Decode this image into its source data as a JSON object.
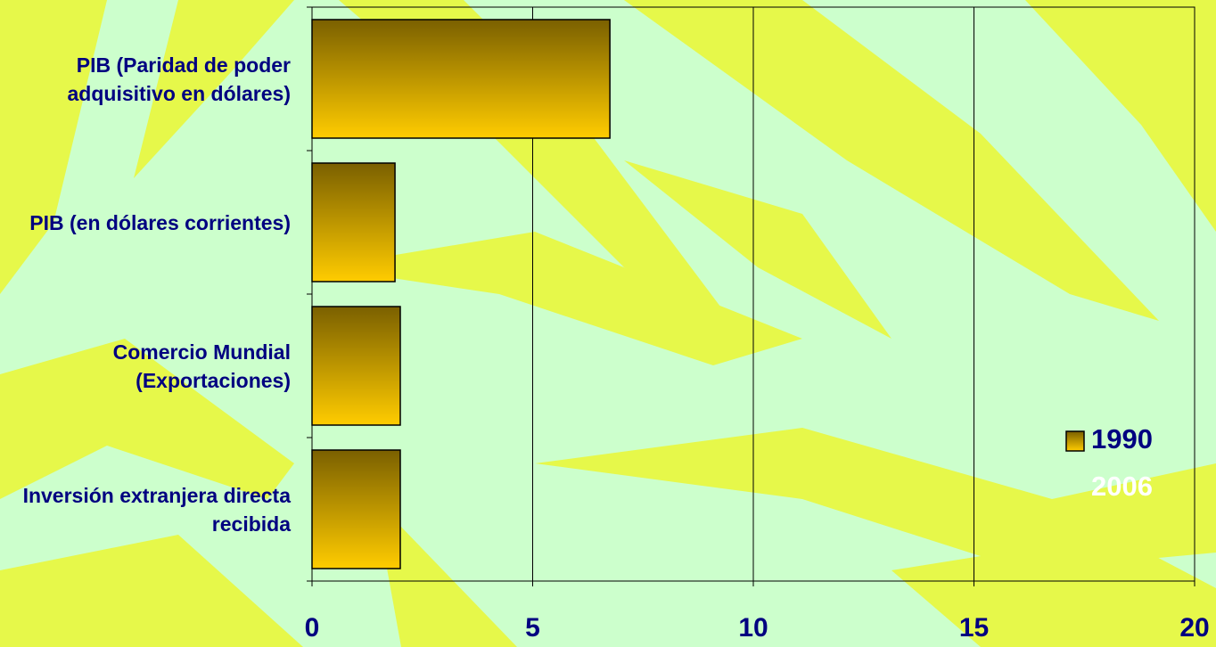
{
  "chart_data": {
    "type": "hbar",
    "categories": [
      "PIB (Paridad de poder adquisitivo en dólares)",
      "PIB (en dólares corrientes)",
      "Comercio Mundial (Exportaciones)",
      "Inversión extranjera directa recibida"
    ],
    "series": [
      {
        "name": "1990",
        "color": "#ffcc00",
        "values": [
          6.75,
          1.88,
          2.0,
          2.0
        ]
      },
      {
        "name": "2006",
        "color": "#ffffff",
        "values": [
          null,
          null,
          null,
          null
        ]
      }
    ],
    "xlim": [
      0,
      20
    ],
    "xticks": [
      0,
      5,
      10,
      15,
      20
    ],
    "grid": true
  }
}
